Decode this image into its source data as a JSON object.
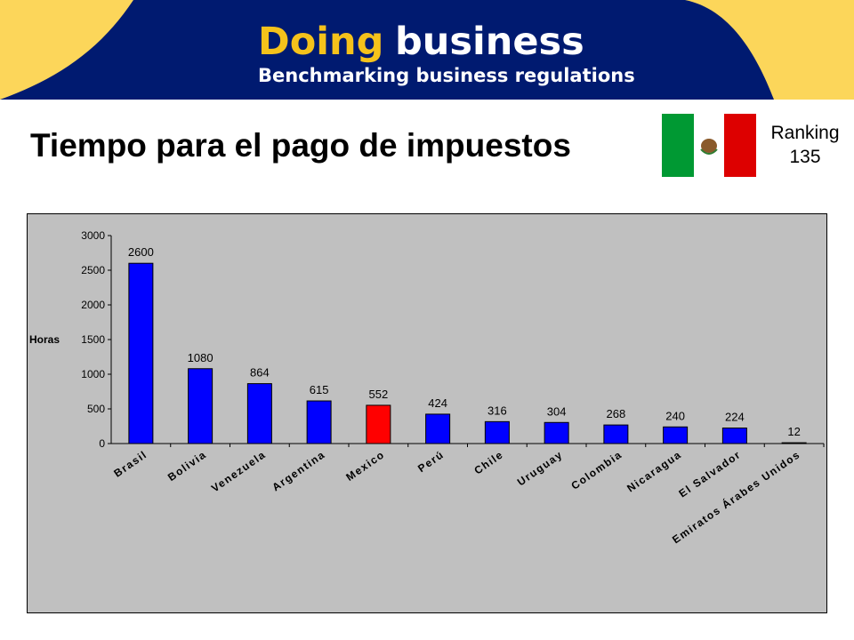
{
  "banner": {
    "logo_part1": "Doing",
    "logo_part2": "business",
    "tagline": "Benchmarking business regulations"
  },
  "title": "Tiempo para el pago de impuestos",
  "ranking": {
    "label": "Ranking",
    "value": "135"
  },
  "flag": {
    "country": "Mexico",
    "colors": [
      "#009933",
      "#ffffff",
      "#dd0000"
    ]
  },
  "colors": {
    "banner_blue": "#001a70",
    "banner_yellow": "#fcd65a",
    "logo_yellow": "#f5c21b",
    "bar_blue": "#0000ff",
    "bar_highlight": "#ff0000",
    "chart_bg": "#c0c0c0"
  },
  "chart_data": {
    "type": "bar",
    "ylabel": "Horas",
    "ylim": [
      0,
      3000
    ],
    "yticks": [
      "0",
      "500",
      "1000",
      "1500",
      "2000",
      "2500",
      "3000"
    ],
    "grid": false,
    "categories": [
      "Brasil",
      "Bolivia",
      "Venezuela",
      "Argentina",
      "Mexico",
      "Perú",
      "Chile",
      "Uruguay",
      "Colombia",
      "Nicaragua",
      "El Salvador",
      "Emiratos Árabes Unidos"
    ],
    "values": [
      2600,
      1080,
      864,
      615,
      552,
      424,
      316,
      304,
      268,
      240,
      224,
      12
    ],
    "value_labels": [
      "2600",
      "1080",
      "864",
      "615",
      "552",
      "424",
      "316",
      "304",
      "268",
      "240",
      "224",
      "12"
    ],
    "highlight": "Mexico"
  }
}
